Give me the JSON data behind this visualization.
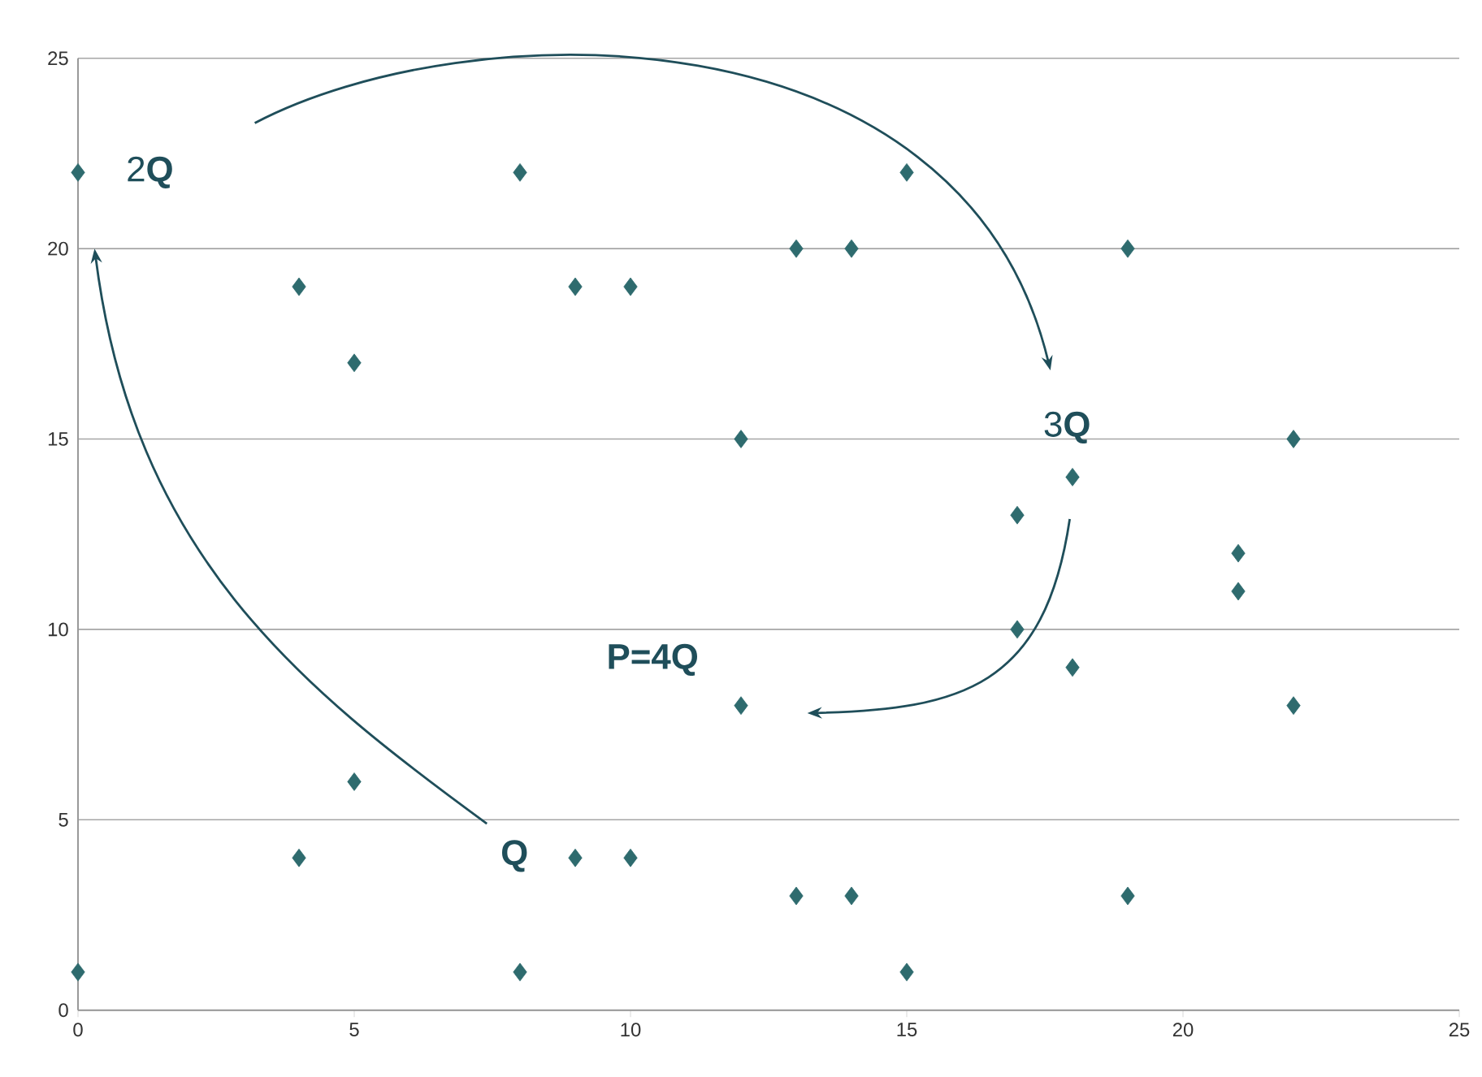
{
  "chart_data": {
    "type": "scatter",
    "x": [
      0,
      0,
      4,
      4,
      5,
      5,
      8,
      8,
      9,
      9,
      10,
      10,
      12,
      12,
      13,
      13,
      14,
      14,
      15,
      15,
      17,
      17,
      18,
      18,
      19,
      19,
      21,
      21,
      22,
      22
    ],
    "values": [
      22,
      1,
      19,
      4,
      17,
      6,
      22,
      1,
      19,
      4,
      19,
      4,
      15,
      8,
      20,
      3,
      20,
      3,
      22,
      1,
      13,
      10,
      14,
      9,
      20,
      3,
      12,
      11,
      15,
      8
    ],
    "color": "#2e6b6e",
    "marker": "diamond",
    "xlim": [
      0,
      25
    ],
    "ylim": [
      0,
      25
    ],
    "xticks": [
      0,
      5,
      10,
      15,
      20,
      25
    ],
    "yticks": [
      0,
      5,
      10,
      15,
      20,
      25
    ],
    "grid": "y",
    "annotations": [
      "2**Q**",
      "3**Q**",
      "**P=4Q**",
      "**Q**"
    ]
  }
}
